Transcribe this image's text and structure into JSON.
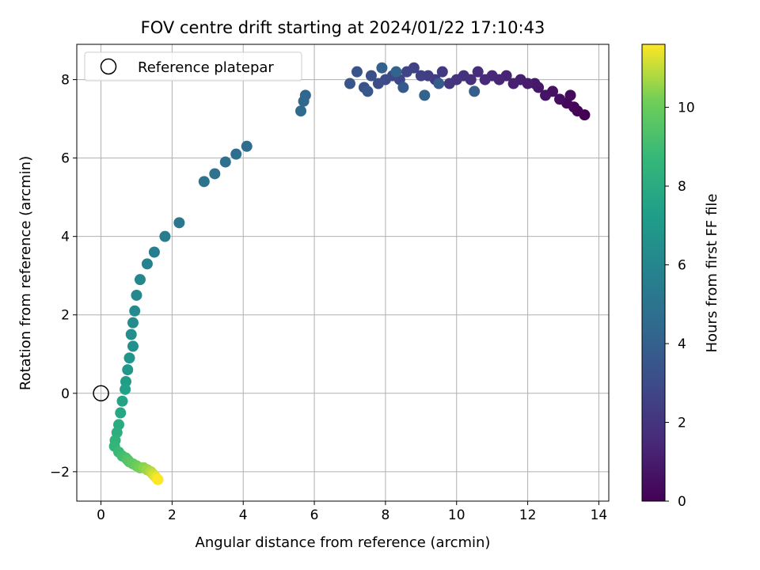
{
  "chart_data": {
    "type": "scatter",
    "title": "FOV centre drift starting at 2024/01/22 17:10:43",
    "xlabel": "Angular distance from reference (arcmin)",
    "ylabel": "Rotation from reference (arcmin)",
    "xlim": [
      -0.68,
      14.28
    ],
    "ylim": [
      -2.75,
      8.9
    ],
    "xticks": [
      0,
      2,
      4,
      6,
      8,
      10,
      12,
      14
    ],
    "yticks": [
      -2,
      0,
      2,
      4,
      6,
      8
    ],
    "grid": true,
    "legend": {
      "position": "top-left",
      "entries": [
        "Reference platepar"
      ]
    },
    "reference_point": {
      "x": 0,
      "y": 0
    },
    "colorbar": {
      "label": "Hours from first FF file",
      "colormap": "viridis",
      "range": [
        0,
        11.6
      ],
      "ticks": [
        0,
        2,
        4,
        6,
        8,
        10
      ]
    },
    "series": [
      {
        "color_values": [
          0.0,
          0.1,
          0.2,
          0.3,
          0.4,
          0.5,
          0.6,
          0.7,
          0.8,
          0.9,
          1.0,
          1.1,
          1.2,
          1.3,
          1.4,
          1.5,
          1.6,
          1.7,
          1.8,
          1.9,
          2.0,
          2.1,
          2.2,
          2.3,
          2.4,
          2.5,
          2.6,
          2.7,
          2.8,
          2.9,
          3.0,
          3.1,
          3.2,
          3.3,
          3.4,
          3.5,
          3.6,
          3.7,
          3.8,
          3.9,
          4.0,
          4.1,
          4.2,
          4.3,
          4.4,
          4.5,
          4.6,
          4.7,
          4.8,
          4.9,
          5.0,
          5.2,
          5.4,
          5.6,
          5.8,
          6.0,
          6.1,
          6.2,
          6.3,
          6.4,
          6.6,
          6.8,
          7.0,
          7.2,
          7.4,
          7.6,
          7.8,
          8.0,
          8.2,
          8.4,
          8.6,
          8.8,
          9.0,
          9.2,
          9.4,
          9.6,
          9.8,
          10.0,
          10.2,
          10.4,
          10.6,
          10.8,
          11.0,
          11.2,
          11.4,
          11.6
        ],
        "x": [
          13.6,
          13.4,
          13.3,
          13.1,
          13.2,
          12.9,
          12.7,
          12.5,
          12.3,
          12.2,
          12.0,
          11.8,
          11.6,
          11.4,
          11.2,
          11.0,
          10.8,
          10.6,
          10.4,
          10.2,
          10.0,
          9.8,
          9.6,
          9.4,
          9.2,
          9.0,
          8.8,
          8.6,
          8.4,
          8.2,
          8.0,
          7.8,
          7.6,
          7.4,
          7.2,
          7.0,
          7.5,
          8.5,
          9.5,
          10.5,
          7.9,
          9.1,
          8.3,
          5.75,
          5.7,
          5.62,
          4.1,
          3.8,
          3.5,
          3.2,
          2.9,
          2.2,
          1.8,
          1.5,
          1.3,
          1.1,
          1.0,
          0.95,
          0.9,
          0.85,
          0.9,
          0.8,
          0.75,
          0.7,
          0.68,
          0.6,
          0.55,
          0.5,
          0.45,
          0.4,
          0.38,
          0.5,
          0.6,
          0.7,
          0.75,
          0.8,
          0.9,
          1.0,
          1.1,
          1.2,
          1.3,
          1.4,
          1.45,
          1.5,
          1.55,
          1.6
        ],
        "y": [
          7.1,
          7.2,
          7.3,
          7.4,
          7.6,
          7.5,
          7.7,
          7.6,
          7.8,
          7.9,
          7.9,
          8.0,
          7.9,
          8.1,
          8.0,
          8.1,
          8.0,
          8.2,
          8.0,
          8.1,
          8.0,
          7.9,
          8.2,
          8.0,
          8.1,
          8.1,
          8.3,
          8.2,
          8.0,
          8.1,
          8.0,
          7.9,
          8.1,
          7.8,
          8.2,
          7.9,
          7.7,
          7.8,
          7.9,
          7.7,
          8.3,
          7.6,
          8.2,
          7.6,
          7.45,
          7.2,
          6.3,
          6.1,
          5.9,
          5.6,
          5.4,
          4.35,
          4.0,
          3.6,
          3.3,
          2.9,
          2.5,
          2.1,
          1.8,
          1.5,
          1.2,
          0.9,
          0.6,
          0.3,
          0.1,
          -0.2,
          -0.5,
          -0.8,
          -1.0,
          -1.2,
          -1.35,
          -1.5,
          -1.6,
          -1.65,
          -1.7,
          -1.75,
          -1.8,
          -1.85,
          -1.9,
          -1.9,
          -1.95,
          -2.0,
          -2.05,
          -2.1,
          -2.15,
          -2.2
        ]
      }
    ]
  }
}
